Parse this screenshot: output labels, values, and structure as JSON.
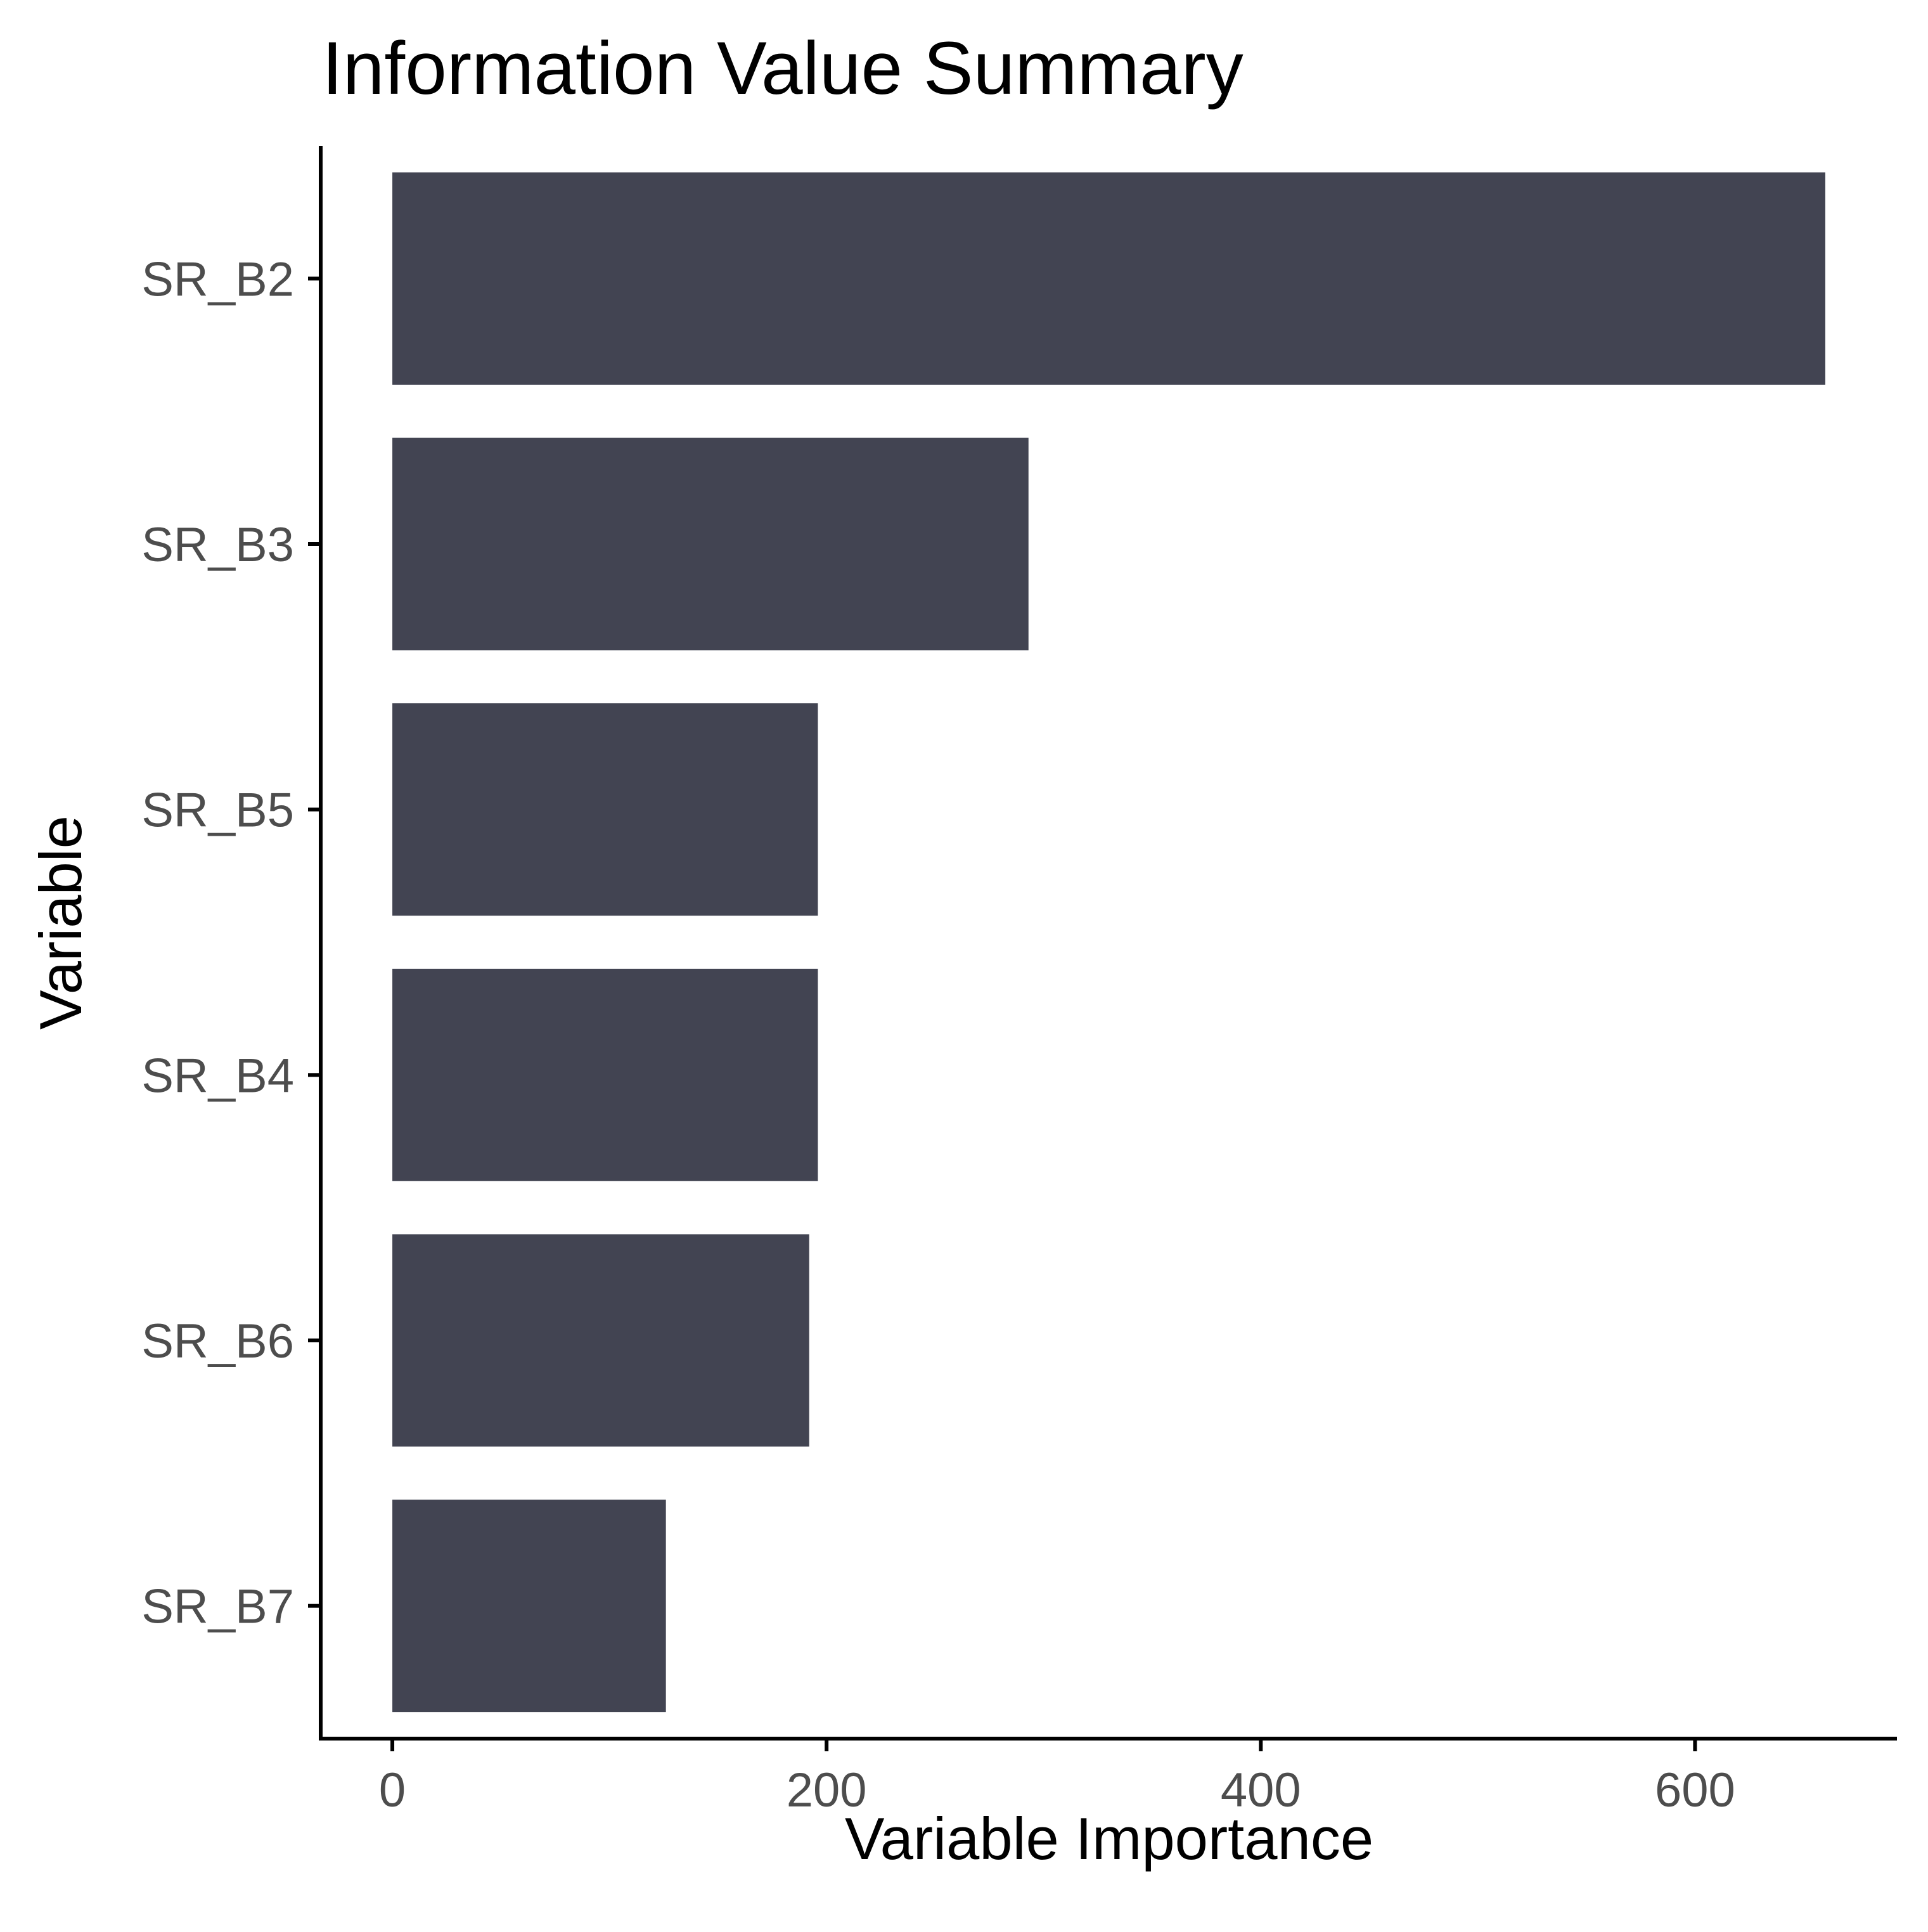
{
  "chart_data": {
    "type": "bar",
    "orientation": "horizontal",
    "title": "Information Value Summary",
    "xlabel": "Variable Importance",
    "ylabel": "Variable",
    "categories": [
      "SR_B2",
      "SR_B3",
      "SR_B5",
      "SR_B4",
      "SR_B6",
      "SR_B7"
    ],
    "values": [
      660,
      293,
      196,
      196,
      192,
      126
    ],
    "xlim": [
      -33,
      693
    ],
    "xticks": [
      0,
      200,
      400,
      600
    ],
    "xtick_labels": [
      "0",
      "200",
      "400",
      "600"
    ],
    "grid": false,
    "legend": "none",
    "bar_color": "#424452"
  }
}
